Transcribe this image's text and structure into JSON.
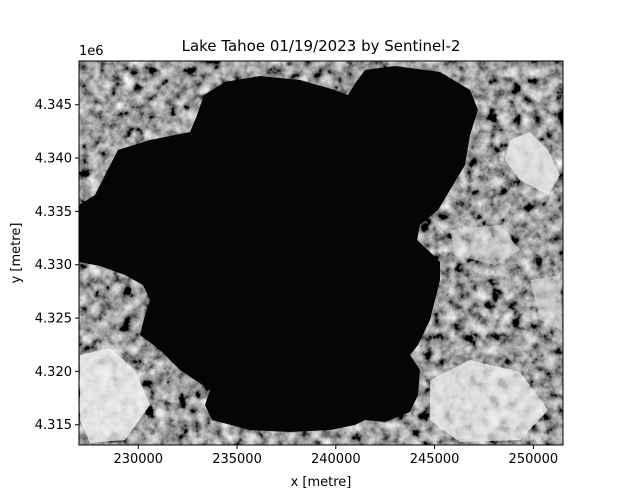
{
  "chart_data": {
    "type": "heatmap",
    "title": "Lake Tahoe 01/19/2023 by Sentinel-2",
    "xlabel": "x [metre]",
    "ylabel": "y [metre]",
    "y_offset_label": "1e6",
    "xlim": [
      227000,
      251500
    ],
    "ylim": [
      4.3131,
      4.3491
    ],
    "x_ticks": [
      230000,
      235000,
      240000,
      245000,
      250000
    ],
    "x_tick_labels": [
      "230000",
      "235000",
      "240000",
      "245000",
      "250000"
    ],
    "y_ticks": [
      4.315,
      4.32,
      4.325,
      4.33,
      4.335,
      4.34,
      4.345
    ],
    "y_tick_labels": [
      "4.315",
      "4.320",
      "4.325",
      "4.330",
      "4.335",
      "4.340",
      "4.345"
    ],
    "colormap": "gray",
    "lake_color": "#050507",
    "grid": false
  }
}
